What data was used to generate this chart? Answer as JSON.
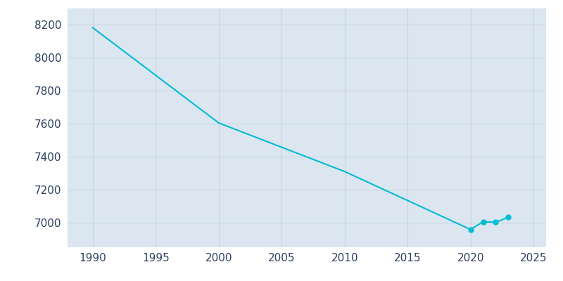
{
  "years": [
    1990,
    2000,
    2010,
    2020,
    2021,
    2022,
    2023
  ],
  "population": [
    8183,
    7605,
    7310,
    6958,
    7005,
    7002,
    7032
  ],
  "line_color": "#00BCD4",
  "marker_years": [
    2020,
    2021,
    2022,
    2023
  ],
  "marker_populations": [
    6958,
    7005,
    7002,
    7032
  ],
  "fig_bg_color": "#ffffff",
  "axes_bg_color": "#dce6f0",
  "xlim": [
    1988,
    2026
  ],
  "ylim": [
    6850,
    8300
  ],
  "xticks": [
    1990,
    1995,
    2000,
    2005,
    2010,
    2015,
    2020,
    2025
  ],
  "yticks": [
    7000,
    7200,
    7400,
    7600,
    7800,
    8000,
    8200
  ],
  "grid_color": "#c8d4e0",
  "tick_label_color": "#2e4060",
  "tick_fontsize": 11
}
